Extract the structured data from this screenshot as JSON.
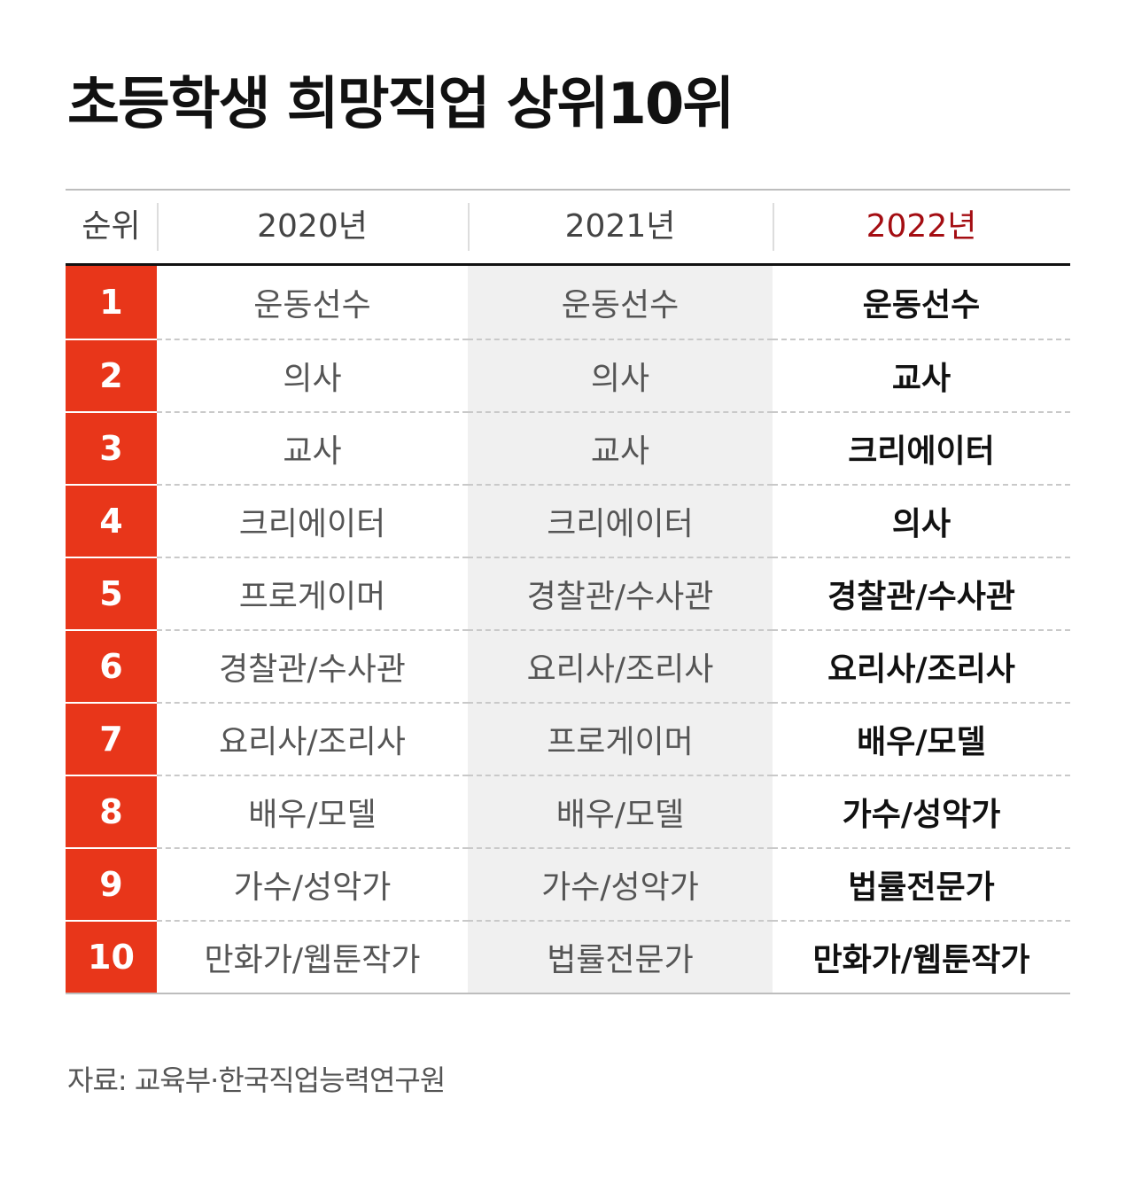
{
  "title": "초등학생 희망직업 상위10위",
  "chart_data": {
    "type": "table",
    "title": "초등학생 희망직업 상위10위",
    "columns": [
      "순위",
      "2020년",
      "2021년",
      "2022년"
    ],
    "rows": [
      {
        "rank": "1",
        "y2020": "운동선수",
        "y2021": "운동선수",
        "y2022": "운동선수"
      },
      {
        "rank": "2",
        "y2020": "의사",
        "y2021": "의사",
        "y2022": "교사"
      },
      {
        "rank": "3",
        "y2020": "교사",
        "y2021": "교사",
        "y2022": "크리에이터"
      },
      {
        "rank": "4",
        "y2020": "크리에이터",
        "y2021": "크리에이터",
        "y2022": "의사"
      },
      {
        "rank": "5",
        "y2020": "프로게이머",
        "y2021": "경찰관/수사관",
        "y2022": "경찰관/수사관"
      },
      {
        "rank": "6",
        "y2020": "경찰관/수사관",
        "y2021": "요리사/조리사",
        "y2022": "요리사/조리사"
      },
      {
        "rank": "7",
        "y2020": "요리사/조리사",
        "y2021": "프로게이머",
        "y2022": "배우/모델"
      },
      {
        "rank": "8",
        "y2020": "배우/모델",
        "y2021": "배우/모델",
        "y2022": "가수/성악가"
      },
      {
        "rank": "9",
        "y2020": "가수/성악가",
        "y2021": "가수/성악가",
        "y2022": "법률전문가"
      },
      {
        "rank": "10",
        "y2020": "만화가/웹툰작가",
        "y2021": "법률전문가",
        "y2022": "만화가/웹툰작가"
      }
    ]
  },
  "source": "자료: 교육부·한국직업능력연구원",
  "colors": {
    "rank_bg": "#e8361a",
    "latest_header": "#a40d12",
    "shaded_column": "#f0f0f0"
  }
}
